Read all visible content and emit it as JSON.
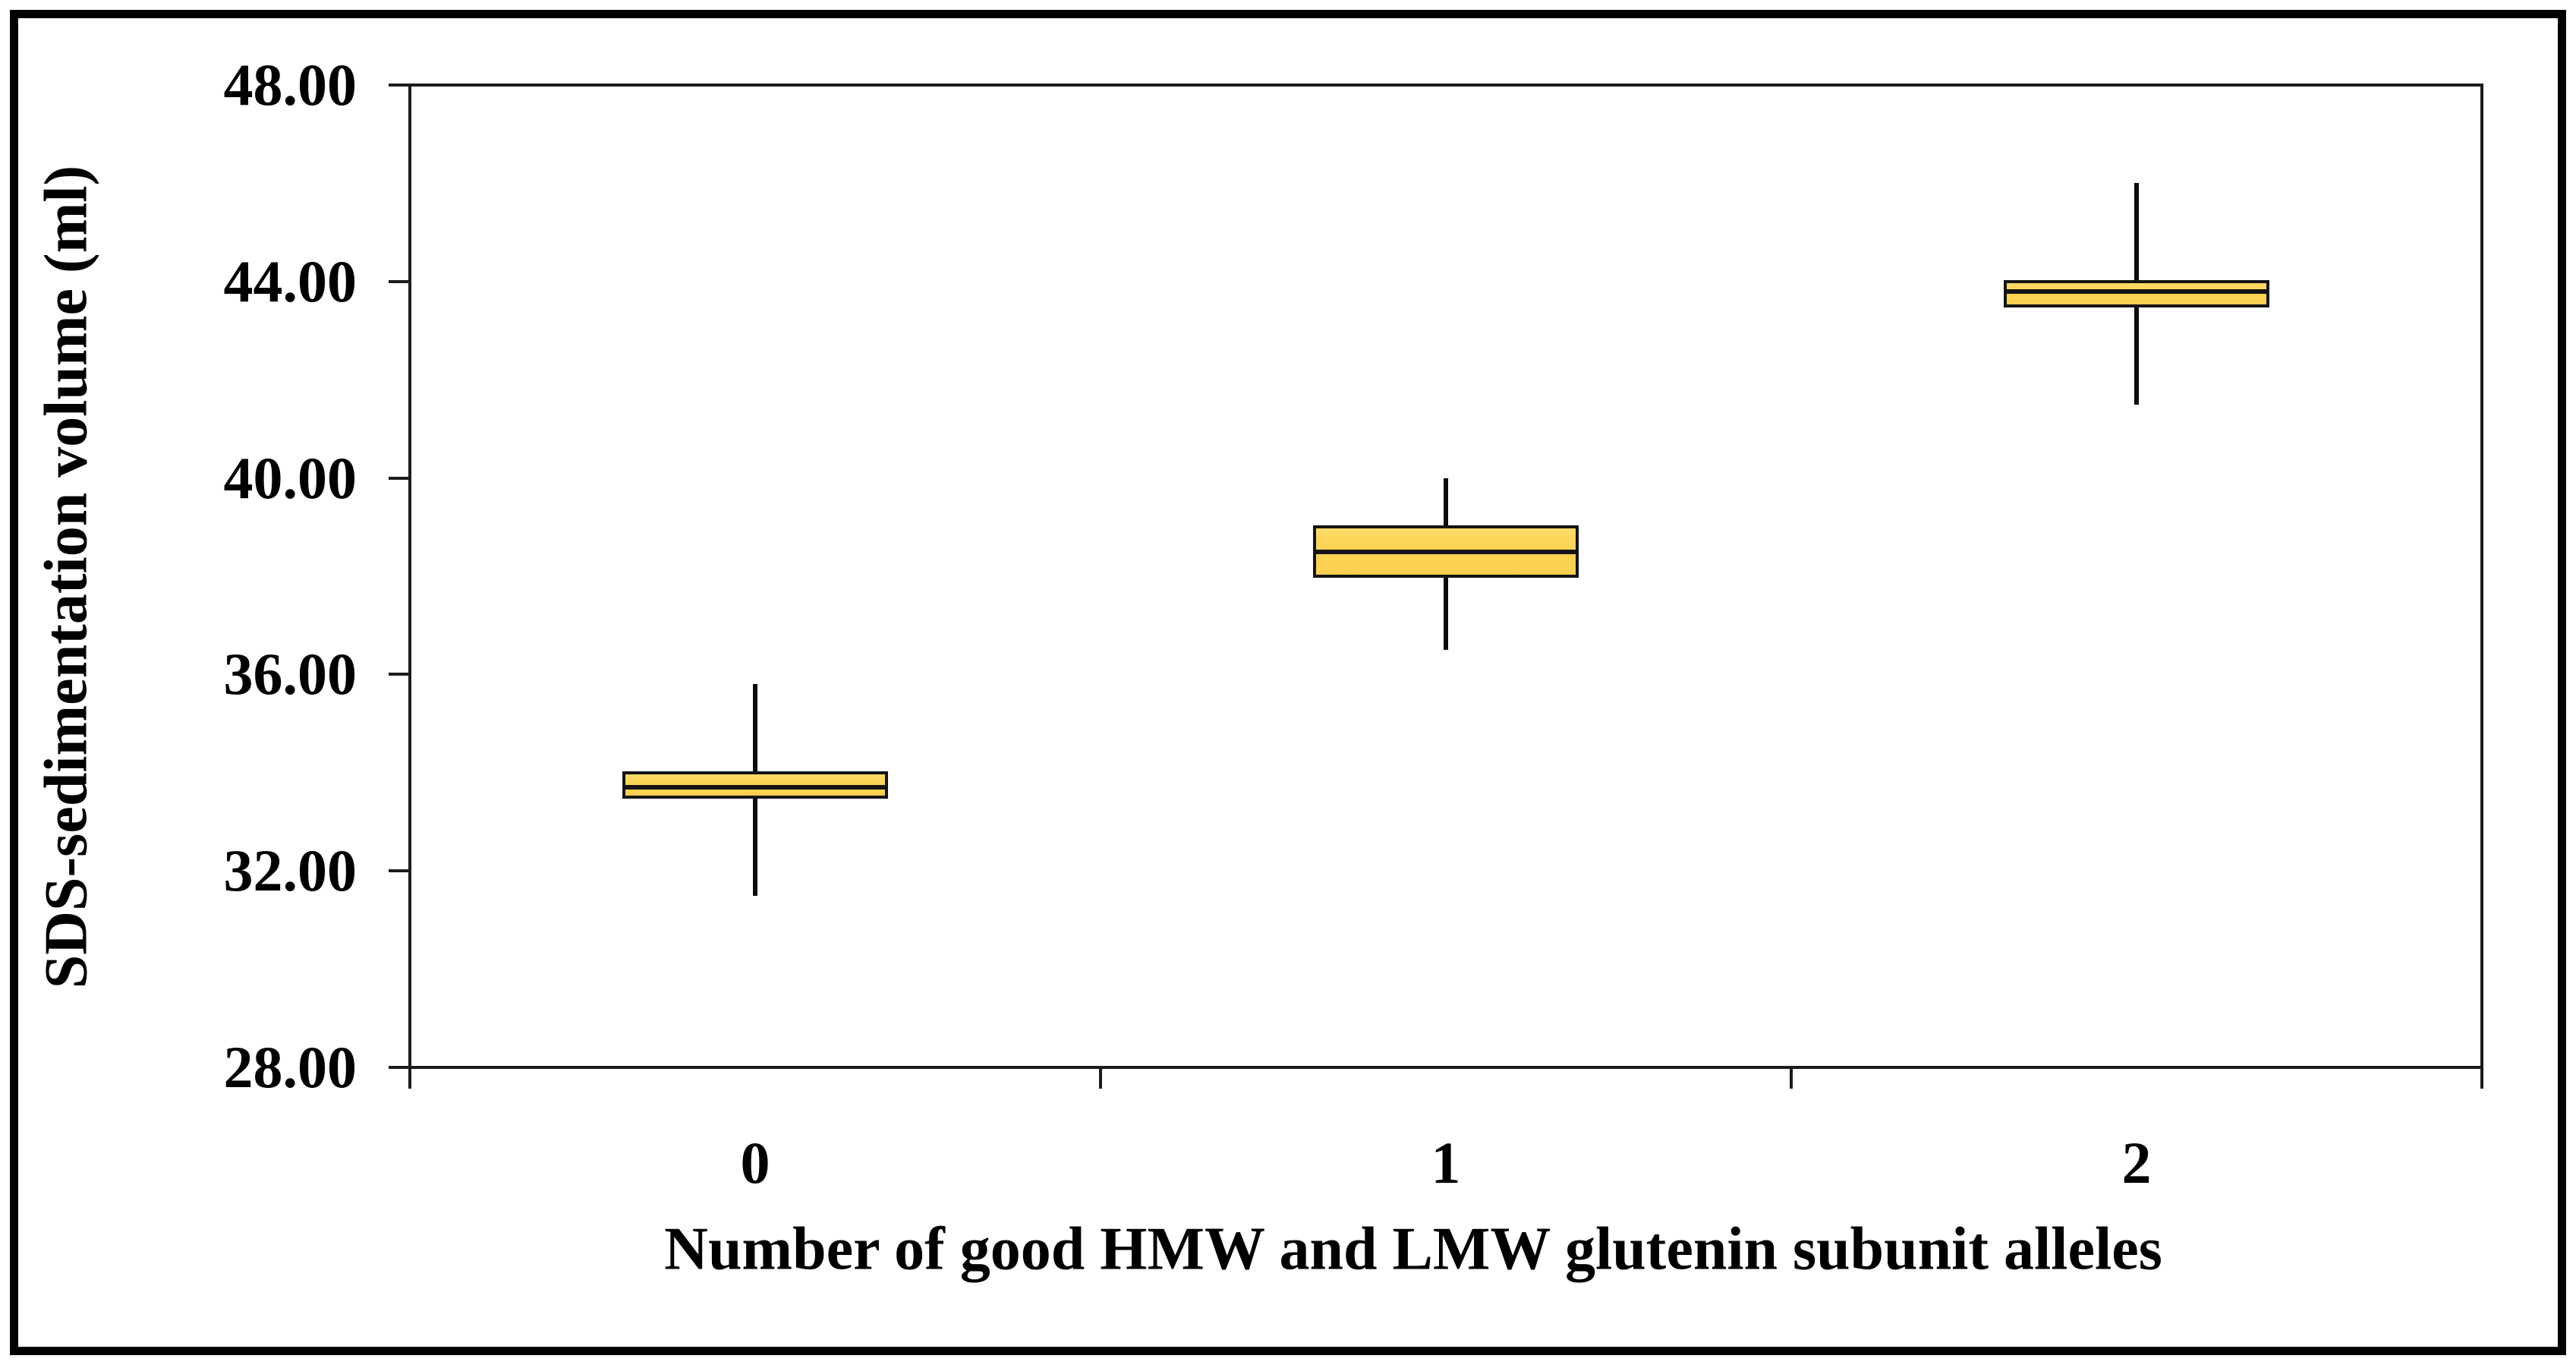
{
  "figure": {
    "background_color": "#ffffff",
    "border_color": "#000000"
  },
  "colors": {
    "box_fill": "#FCD34F",
    "box_border": "#141414",
    "whisker": "#0A0A0A",
    "axis_line": "#1C1C1C",
    "text": "#000000"
  },
  "chart_data": {
    "type": "box",
    "title": "",
    "xlabel": "Number of good HMW and LMW glutenin subunit alleles",
    "ylabel": "SDS-sedimentation volume (ml)",
    "ylim": [
      28,
      48
    ],
    "grid": false,
    "legend": false,
    "y_ticks": [
      {
        "value": 48,
        "label": "48.00"
      },
      {
        "value": 44,
        "label": "44.00"
      },
      {
        "value": 40,
        "label": "40.00"
      },
      {
        "value": 36,
        "label": "36.00"
      },
      {
        "value": 32,
        "label": "32.00"
      },
      {
        "value": 28,
        "label": "28.00"
      }
    ],
    "categories": [
      "0",
      "1",
      "2"
    ],
    "series": [
      {
        "category": "0",
        "min": 31.5,
        "q1": 33.5,
        "median": 33.7,
        "q3": 34.0,
        "max": 35.8
      },
      {
        "category": "1",
        "min": 36.5,
        "q1": 38.0,
        "median": 38.5,
        "q3": 39.0,
        "max": 40.0
      },
      {
        "category": "2",
        "min": 41.5,
        "q1": 43.5,
        "median": 43.8,
        "q3": 44.0,
        "max": 46.0
      }
    ]
  }
}
